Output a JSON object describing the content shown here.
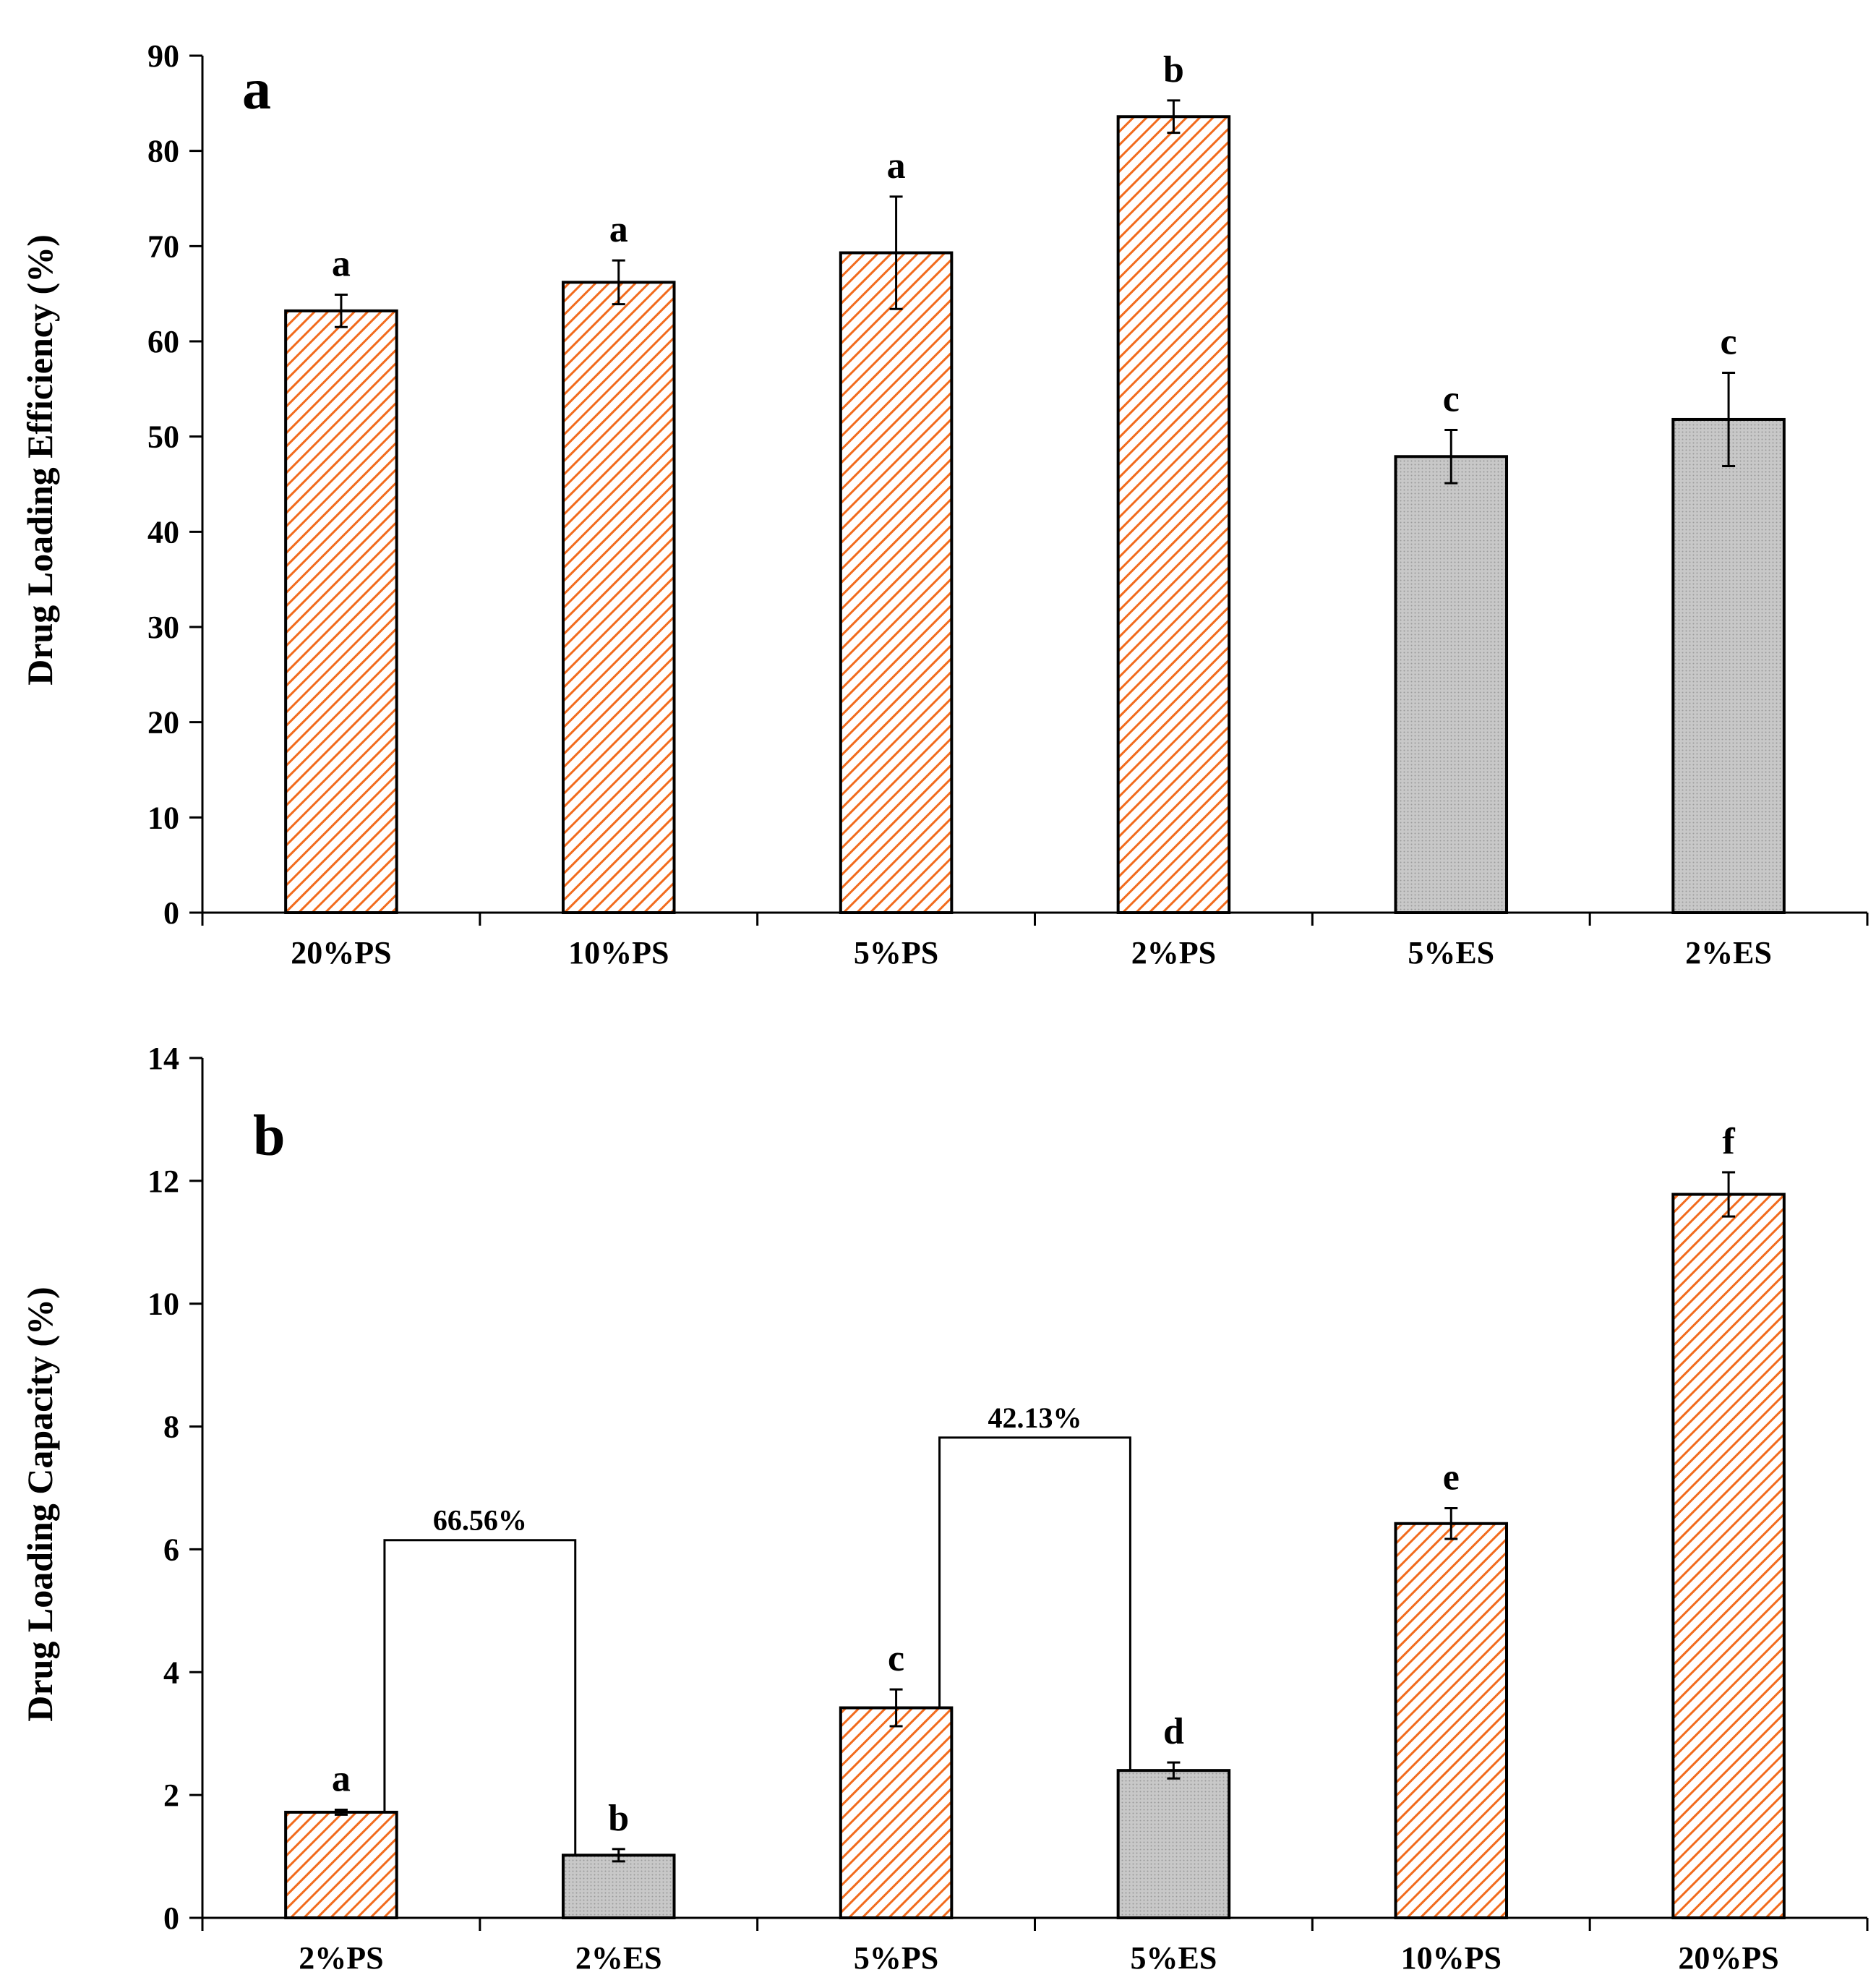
{
  "colors": {
    "ps_stroke": "#f26b1d",
    "es_fill": "#c8c8c8",
    "es_pattern": "#9a9a9a",
    "axis": "#000000"
  },
  "chart_data": [
    {
      "id": "a",
      "type": "bar",
      "panel_label": "a",
      "ylabel": "Drug Loading Efficiency (%)",
      "xlabel": "",
      "ylim": [
        0,
        90
      ],
      "ytick_step": 10,
      "yticks": [
        "0",
        "10",
        "20",
        "30",
        "40",
        "50",
        "60",
        "70",
        "80",
        "90"
      ],
      "categories": [
        "20%PS",
        "10%PS",
        "5%PS",
        "2%PS",
        "5%ES",
        "2%ES"
      ],
      "values": [
        63.2,
        66.2,
        69.3,
        83.6,
        47.9,
        51.8
      ],
      "errors": [
        1.7,
        2.3,
        5.9,
        1.7,
        2.8,
        4.9
      ],
      "kinds": [
        "PS",
        "PS",
        "PS",
        "PS",
        "ES",
        "ES"
      ],
      "significance": [
        "a",
        "a",
        "a",
        "b",
        "c",
        "c"
      ],
      "brackets": []
    },
    {
      "id": "b",
      "type": "bar",
      "panel_label": "b",
      "ylabel": "Drug Loading Capacity (%)",
      "xlabel": "",
      "ylim": [
        0,
        14
      ],
      "ytick_step": 2,
      "yticks": [
        "0",
        "2",
        "4",
        "6",
        "8",
        "10",
        "12",
        "14"
      ],
      "categories": [
        "2%PS",
        "2%ES",
        "5%PS",
        "5%ES",
        "10%PS",
        "20%PS"
      ],
      "values": [
        1.72,
        1.02,
        3.42,
        2.4,
        6.42,
        11.78
      ],
      "errors": [
        0.04,
        0.1,
        0.3,
        0.13,
        0.25,
        0.36
      ],
      "kinds": [
        "PS",
        "ES",
        "PS",
        "ES",
        "PS",
        "PS"
      ],
      "significance": [
        "a",
        "b",
        "c",
        "d",
        "e",
        "f"
      ],
      "brackets": [
        {
          "from": 0,
          "to": 1,
          "y": 6.15,
          "label": "66.56%"
        },
        {
          "from": 2,
          "to": 3,
          "y": 7.82,
          "label": "42.13%"
        }
      ]
    }
  ]
}
